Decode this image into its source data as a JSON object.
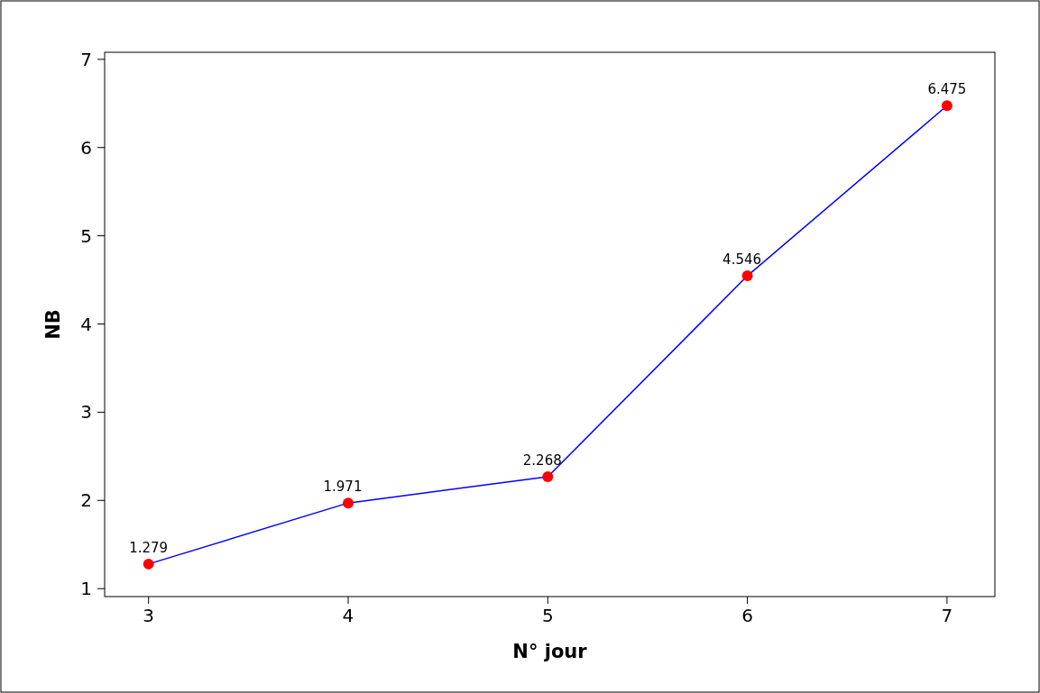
{
  "chart_data": {
    "type": "line",
    "xlabel": "N° jour",
    "ylabel": "NB",
    "x": [
      3,
      4,
      5,
      6,
      7
    ],
    "series": [
      {
        "color": "#0000ff",
        "colors": [
          "#ff0000",
          "#ff0000",
          "#ff0000",
          "#ff0000",
          "#ff0000"
        ],
        "values": [
          1.279,
          1.971,
          2.268,
          4.546,
          6.475
        ]
      }
    ],
    "marker": "circle",
    "data_labels": true,
    "xlim": [
      2.78,
      7.24
    ],
    "xticks": [
      3,
      4,
      5,
      6,
      7
    ],
    "ylim": [
      0.91,
      7.08
    ],
    "yticks": [
      1,
      2,
      3,
      4,
      5,
      6,
      7
    ]
  }
}
